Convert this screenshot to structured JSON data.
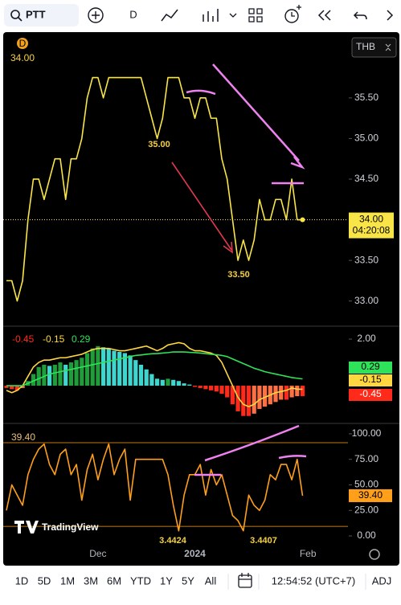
{
  "toolbar": {
    "symbol": "PTT",
    "interval": "D"
  },
  "watermark": "TradingView",
  "bottom_bar": {
    "ranges": [
      "1D",
      "5D",
      "1M",
      "3M",
      "6M",
      "YTD",
      "1Y",
      "5Y",
      "All"
    ],
    "time": "12:54:52 (UTC+7)",
    "adjust": "ADJ"
  },
  "chart_data": [
    {
      "type": "line",
      "currency": "THB",
      "badge": "D",
      "color": "#f9e547",
      "values": [
        33.25,
        33.25,
        33.0,
        33.25,
        34.0,
        34.5,
        34.5,
        34.25,
        34.5,
        34.75,
        34.75,
        34.25,
        34.75,
        34.75,
        35.0,
        35.5,
        35.75,
        35.75,
        35.5,
        35.75,
        35.75,
        35.75,
        35.75,
        35.75,
        35.75,
        35.75,
        35.5,
        35.25,
        35.0,
        35.25,
        35.75,
        35.75,
        35.75,
        35.5,
        35.5,
        35.25,
        35.5,
        35.5,
        35.25,
        35.25,
        34.75,
        34.5,
        34.0,
        33.5,
        33.75,
        33.5,
        33.75,
        34.25,
        34.0,
        34.0,
        34.25,
        34.25,
        34.0,
        34.5,
        34.0,
        34.0,
        null
      ],
      "last_label": {
        "value": 34,
        "label": "34.00"
      },
      "countdown": "04:20:08",
      "annotations": [
        {
          "value": 35,
          "label": "35.00"
        },
        {
          "value": 33.5,
          "label": "33.50"
        }
      ],
      "ylim": [
        32.7,
        36.26
      ],
      "yticks": [
        {
          "value": 33,
          "label": "33.00"
        },
        {
          "value": 33.5,
          "label": "33.50"
        },
        {
          "value": 34.5,
          "label": "34.50"
        },
        {
          "value": 35,
          "label": "35.00"
        },
        {
          "value": 35.5,
          "label": "35.50"
        }
      ]
    },
    {
      "type": "macd",
      "ylim": [
        -1.62,
        2.52
      ],
      "yticks": [
        {
          "value": 2,
          "label": "2.00"
        }
      ],
      "colors": {
        "pos_up": "#1f9d3a",
        "pos_down": "#3fd6d0",
        "neg_down": "#ff2a1a",
        "neg_up": "#ff7043"
      },
      "series": [
        {
          "kind": "histogram",
          "color": "#ff2a1a",
          "values": [
            -0.1,
            -0.15,
            -0.2,
            -0.1,
            0.2,
            0.5,
            0.8,
            0.9,
            0.85,
            0.9,
            1.0,
            0.9,
            1.0,
            1.1,
            1.2,
            1.4,
            1.6,
            1.7,
            1.65,
            1.6,
            1.5,
            1.45,
            1.4,
            1.3,
            1.1,
            0.9,
            0.7,
            0.5,
            0.3,
            0.25,
            0.3,
            0.25,
            0.2,
            0.1,
            0.05,
            -0.05,
            -0.1,
            -0.15,
            -0.2,
            -0.25,
            -0.35,
            -0.5,
            -0.8,
            -1.1,
            -1.3,
            -1.3,
            -1.2,
            -1.0,
            -0.9,
            -0.8,
            -0.7,
            -0.6,
            -0.6,
            -0.5,
            -0.45,
            -0.45,
            null
          ]
        },
        {
          "kind": "line",
          "color": "#ffd740",
          "values": [
            -0.2,
            -0.3,
            -0.2,
            0,
            0.4,
            0.8,
            1.0,
            1.1,
            1.1,
            1.15,
            1.2,
            1.2,
            1.25,
            1.3,
            1.35,
            1.45,
            1.55,
            1.6,
            1.6,
            1.6,
            1.55,
            1.5,
            1.5,
            1.55,
            1.6,
            1.65,
            1.7,
            1.6,
            1.5,
            1.6,
            1.75,
            1.8,
            1.85,
            1.8,
            1.6,
            1.5,
            1.5,
            1.45,
            1.4,
            1.3,
            1.0,
            0.5,
            0,
            -0.5,
            -0.8,
            -0.9,
            -0.8,
            -0.6,
            -0.5,
            -0.4,
            -0.3,
            -0.25,
            -0.2,
            -0.1,
            -0.15,
            -0.15,
            null
          ]
        },
        {
          "kind": "line",
          "color": "#2ee35a",
          "values": [
            0,
            0,
            0,
            0,
            0.1,
            0.2,
            0.3,
            0.4,
            0.5,
            0.55,
            0.6,
            0.65,
            0.7,
            0.75,
            0.8,
            0.85,
            0.9,
            0.95,
            1.0,
            1.05,
            1.1,
            1.15,
            1.2,
            1.25,
            1.3,
            1.32,
            1.35,
            1.37,
            1.38,
            1.4,
            1.42,
            1.45,
            1.45,
            1.45,
            1.43,
            1.42,
            1.4,
            1.38,
            1.35,
            1.33,
            1.3,
            1.25,
            1.15,
            1.05,
            0.95,
            0.85,
            0.75,
            0.68,
            0.6,
            0.55,
            0.5,
            0.45,
            0.4,
            0.35,
            0.32,
            0.29,
            null
          ]
        }
      ]
    },
    {
      "type": "line",
      "color": "#ff9f1a",
      "legend_label": "39.40",
      "categories": [
        null,
        null,
        null,
        null,
        null,
        null,
        null,
        null,
        null,
        null,
        null,
        null,
        null,
        null,
        null,
        null,
        null,
        "Dec",
        null,
        null,
        null,
        null,
        null,
        null,
        null,
        null,
        null,
        null,
        null,
        null,
        null,
        null,
        null,
        null,
        null,
        "2024",
        null,
        null,
        null,
        null,
        null,
        null,
        null,
        null,
        null,
        null,
        null,
        null,
        null,
        null,
        null,
        null,
        null,
        null,
        null,
        null,
        "Feb"
      ],
      "values": [
        25,
        50,
        40,
        30,
        60,
        75,
        85,
        90,
        70,
        60,
        80,
        85,
        60,
        70,
        35,
        65,
        80,
        55,
        75,
        90,
        60,
        75,
        85,
        35,
        75,
        75,
        75,
        75,
        75,
        75,
        60,
        30,
        5,
        40,
        60,
        60,
        70,
        40,
        65,
        50,
        60,
        40,
        20,
        15,
        5,
        40,
        30,
        25,
        35,
        60,
        55,
        70,
        70,
        55,
        75,
        39.4,
        null
      ],
      "hlines": [
        91.3,
        9.4
      ],
      "annotations": [
        "3.4424",
        "3.4407"
      ],
      "ylim": [
        -10.2,
        109.4
      ],
      "yticks": [
        {
          "value": 0,
          "label": "0.00"
        },
        {
          "value": 25,
          "label": "25.00"
        },
        {
          "value": 50,
          "label": "50.00"
        },
        {
          "value": 75,
          "label": "75.00"
        },
        {
          "value": 100,
          "label": "100.00"
        }
      ]
    }
  ]
}
